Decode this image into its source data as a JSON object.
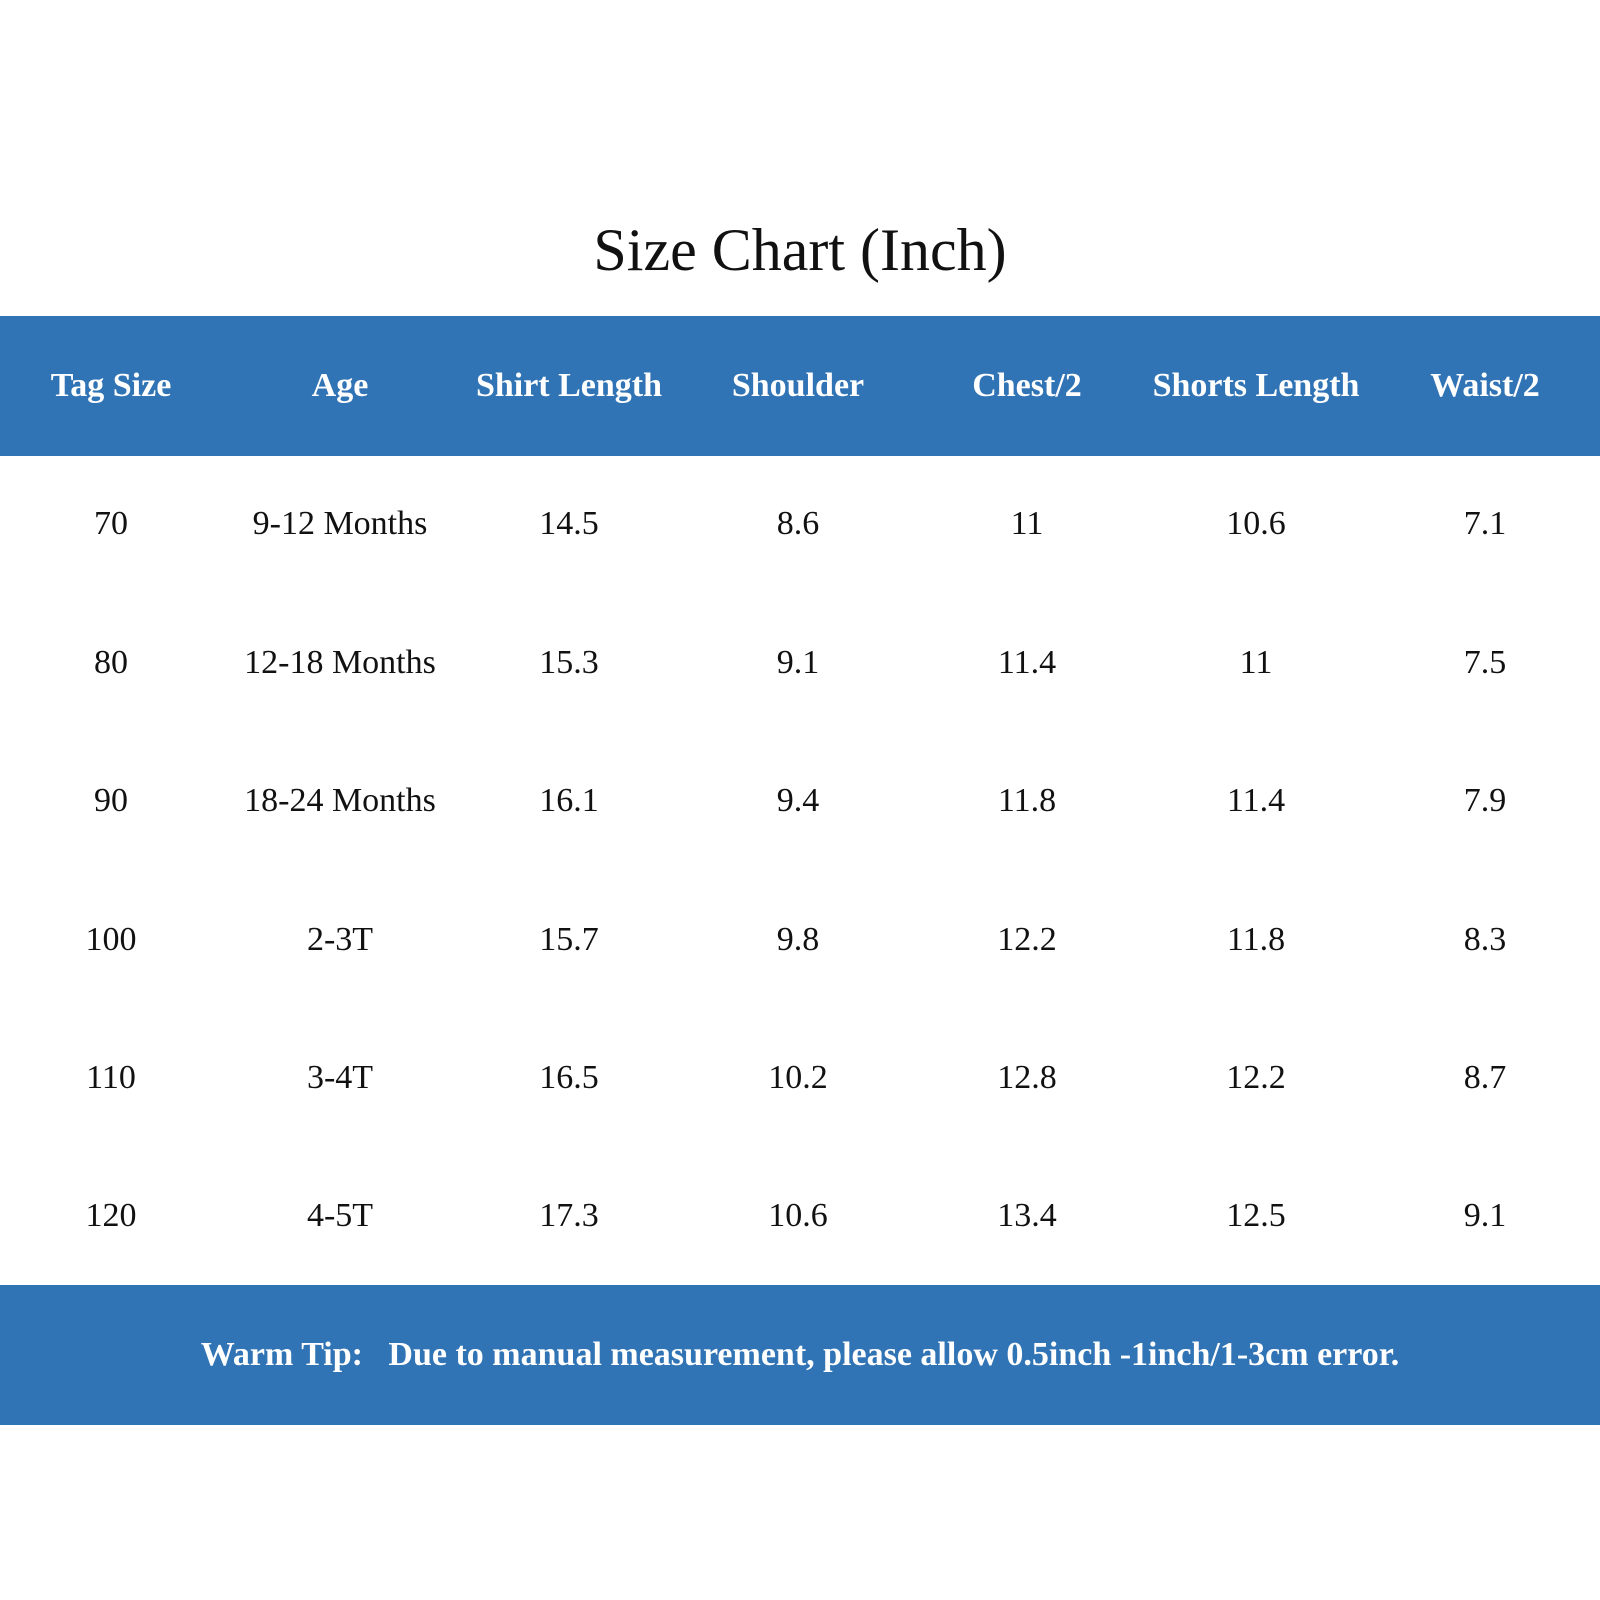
{
  "title": "Size Chart (Inch)",
  "colors": {
    "band": "#3174b5",
    "header_text": "#ffffff",
    "body_text": "#111111",
    "background": "#ffffff"
  },
  "chart_data": {
    "type": "table",
    "title": "Size Chart (Inch)",
    "columns": [
      "Tag Size",
      "Age",
      "Shirt Length",
      "Shoulder",
      "Chest/2",
      "Shorts Length",
      "Waist/2"
    ],
    "rows": [
      [
        "70",
        "9-12 Months",
        "14.5",
        "8.6",
        "11",
        "10.6",
        "7.1"
      ],
      [
        "80",
        "12-18 Months",
        "15.3",
        "9.1",
        "11.4",
        "11",
        "7.5"
      ],
      [
        "90",
        "18-24 Months",
        "16.1",
        "9.4",
        "11.8",
        "11.4",
        "7.9"
      ],
      [
        "100",
        "2-3T",
        "15.7",
        "9.8",
        "12.2",
        "11.8",
        "8.3"
      ],
      [
        "110",
        "3-4T",
        "16.5",
        "10.2",
        "12.8",
        "12.2",
        "8.7"
      ],
      [
        "120",
        "4-5T",
        "17.3",
        "10.6",
        "13.4",
        "12.5",
        "9.1"
      ]
    ]
  },
  "footer": {
    "tip": "Warm Tip:   Due to manual measurement, please allow 0.5inch -1inch/1-3cm error."
  }
}
